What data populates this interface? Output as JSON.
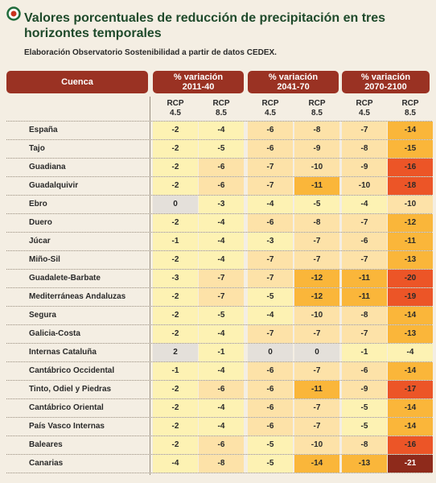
{
  "header": {
    "title": "Valores porcentuales de reducción de precipitación en tres horizontes temporales",
    "subtitle": "Elaboración Observatorio Sostenibilidad a partir de datos CEDEX."
  },
  "table": {
    "basin_header": "Cuenca",
    "periods": [
      {
        "label": "% variación",
        "range": "2011-40"
      },
      {
        "label": "% variación",
        "range": "2041-70"
      },
      {
        "label": "% variación",
        "range": "2070-2100"
      }
    ],
    "subheaders": [
      [
        "RCP",
        "4.5"
      ],
      [
        "RCP",
        "8.5"
      ],
      [
        "RCP",
        "4.5"
      ],
      [
        "RCP",
        "8.5"
      ],
      [
        "RCP",
        "4.5"
      ],
      [
        "RCP",
        "8.5"
      ]
    ],
    "rows": [
      {
        "name": "España",
        "values": [
          -2,
          -4,
          -6,
          -8,
          -7,
          -14
        ]
      },
      {
        "name": "Tajo",
        "values": [
          -2,
          -5,
          -6,
          -9,
          -8,
          -15
        ]
      },
      {
        "name": "Guadiana",
        "values": [
          -2,
          -6,
          -7,
          -10,
          -9,
          -16
        ]
      },
      {
        "name": "Guadalquivir",
        "values": [
          -2,
          -6,
          -7,
          -11,
          -10,
          -18
        ]
      },
      {
        "name": "Ebro",
        "values": [
          0,
          -3,
          -4,
          -5,
          -4,
          -10
        ]
      },
      {
        "name": "Duero",
        "values": [
          -2,
          -4,
          -6,
          -8,
          -7,
          -12
        ]
      },
      {
        "name": "Júcar",
        "values": [
          -1,
          -4,
          -3,
          -7,
          -6,
          -11
        ]
      },
      {
        "name": "Miño-Sil",
        "values": [
          -2,
          -4,
          -7,
          -7,
          -7,
          -13
        ]
      },
      {
        "name": "Guadalete-Barbate",
        "values": [
          -3,
          -7,
          -7,
          -12,
          -11,
          -20
        ]
      },
      {
        "name": "Mediterráneas Andaluzas",
        "values": [
          -2,
          -7,
          -5,
          -12,
          -11,
          -19
        ]
      },
      {
        "name": "Segura",
        "values": [
          -2,
          -5,
          -4,
          -10,
          -8,
          -14
        ]
      },
      {
        "name": "Galicia-Costa",
        "values": [
          -2,
          -4,
          -7,
          -7,
          -7,
          -13
        ]
      },
      {
        "name": "Internas Cataluña",
        "values": [
          2,
          -1,
          0,
          0,
          -1,
          -4
        ]
      },
      {
        "name": "Cantábrico Occidental",
        "values": [
          -1,
          -4,
          -6,
          -7,
          -6,
          -14
        ]
      },
      {
        "name": "Tinto, Odiel y Piedras",
        "values": [
          -2,
          -6,
          -6,
          -11,
          -9,
          -17
        ]
      },
      {
        "name": "Cantábrico Oriental",
        "values": [
          -2,
          -4,
          -6,
          -7,
          -5,
          -14
        ]
      },
      {
        "name": "País Vasco Internas",
        "values": [
          -2,
          -4,
          -6,
          -7,
          -5,
          -14
        ]
      },
      {
        "name": "Baleares",
        "values": [
          -2,
          -6,
          -5,
          -10,
          -8,
          -16
        ]
      },
      {
        "name": "Canarias",
        "values": [
          -4,
          -8,
          -5,
          -14,
          -13,
          -21
        ]
      }
    ]
  }
}
